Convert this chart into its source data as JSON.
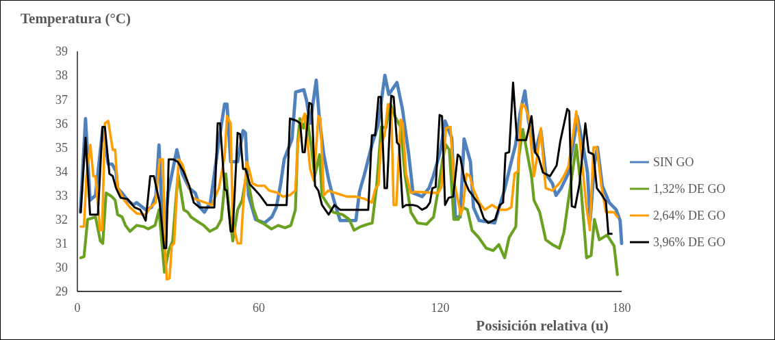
{
  "chart_data": {
    "type": "line",
    "ylabel": "Temperatura (°C)",
    "xlabel": "Posisición relativa (u)",
    "xlim": [
      0,
      180
    ],
    "xticks": [
      0,
      60,
      120,
      180
    ],
    "ylim": [
      29,
      39
    ],
    "yticks": [
      29,
      30,
      31,
      32,
      33,
      34,
      35,
      36,
      37,
      38,
      39
    ],
    "grid": false,
    "legend": "right",
    "marker": "none",
    "line_style": "solid",
    "series": [
      {
        "name": "SIN GO",
        "color": "#4f81bd",
        "x": [
          1,
          2.7,
          4.2,
          6,
          8.4,
          10.2,
          11.5,
          12.8,
          13.3,
          15,
          16.6,
          18.5,
          19.6,
          20.6,
          22.6,
          24.5,
          26,
          27,
          28.5,
          30,
          32.9,
          34.7,
          37,
          39,
          40.6,
          42,
          44,
          46.9,
          48.7,
          49.5,
          50.7,
          53,
          54.8,
          55.6,
          56.6,
          58.9,
          61.9,
          64.3,
          65.8,
          67.2,
          68.4,
          71,
          72.2,
          74.9,
          75.8,
          77,
          79,
          80.1,
          81.5,
          83.1,
          84.6,
          86.9,
          92.1,
          93.3,
          95.1,
          97.4,
          99.4,
          101.7,
          103,
          105.7,
          107.5,
          109.6,
          111,
          114,
          116.3,
          117.7,
          120,
          121.6,
          123.8,
          125,
          126.6,
          127.9,
          130,
          131,
          132.9,
          138,
          141.3,
          143.5,
          144.9,
          146.4,
          148,
          149.2,
          151.4,
          153.3,
          154.9,
          157.1,
          158.3,
          160,
          162.3,
          164.6,
          165.3,
          167.2,
          168.7,
          169.6,
          171,
          172,
          173.6,
          175.9,
          178.2,
          179.5,
          180
        ],
        "values": [
          32.3,
          36.2,
          32.8,
          33,
          35.8,
          34.3,
          34.3,
          34,
          33.3,
          33.07,
          32.8,
          32.6,
          32.7,
          32.6,
          32.4,
          32.5,
          33,
          35.1,
          30.8,
          33.1,
          34.9,
          33.9,
          33.3,
          33.1,
          32.5,
          32.3,
          32.7,
          35.35,
          36.8,
          36.8,
          34.4,
          34.4,
          35.7,
          35.6,
          33,
          32,
          31.85,
          32.1,
          32.5,
          33.45,
          34.5,
          35.35,
          37.3,
          37.4,
          36.95,
          36,
          37.8,
          36.1,
          34.7,
          33.65,
          32.9,
          31.95,
          31.95,
          33.15,
          33.95,
          35.1,
          35.9,
          38,
          37.2,
          37.7,
          36.6,
          34.7,
          33.1,
          32.95,
          33.3,
          33.8,
          34.8,
          36.1,
          35.4,
          32.1,
          32.1,
          35.35,
          34.4,
          32.5,
          31.95,
          31.85,
          33.25,
          34.4,
          35.1,
          36.4,
          37.35,
          36.1,
          34.8,
          35.7,
          33.9,
          33.5,
          33,
          33.3,
          33.9,
          35.6,
          36.3,
          35.1,
          33.95,
          31.95,
          34.3,
          35,
          33.4,
          32.7,
          32.4,
          31.95,
          31
        ]
      },
      {
        "name": "1,32% DE GO",
        "color": "#6aa121",
        "x": [
          1.1,
          2.2,
          3.4,
          6,
          7.6,
          8.4,
          9.5,
          11.4,
          12.5,
          13.3,
          14.8,
          15.9,
          17.4,
          19.6,
          21.9,
          23.4,
          25.7,
          27,
          28.8,
          30.2,
          31.5,
          33.3,
          35.2,
          36.5,
          37.6,
          39.9,
          41.8,
          43.8,
          46.1,
          47.6,
          49.1,
          50.3,
          51.4,
          53,
          54.5,
          56,
          58.1,
          59.6,
          61.9,
          64.2,
          66.4,
          68.7,
          70.6,
          72.1,
          72.9,
          73.6,
          74.8,
          75.9,
          77.4,
          78.5,
          80.1,
          80.9,
          82.4,
          84.6,
          87.7,
          89.9,
          91.5,
          93.7,
          96,
          97.5,
          98.9,
          100.5,
          102,
          103.5,
          105,
          106.9,
          108.4,
          110.3,
          112.5,
          115.5,
          117.8,
          119.3,
          120.8,
          121.9,
          123,
          124.5,
          126,
          127.5,
          129,
          130.5,
          132.7,
          135.2,
          137.5,
          139.4,
          141.3,
          142.8,
          145,
          146,
          147.3,
          148.7,
          150.2,
          151,
          152.9,
          154.9,
          157.1,
          159.4,
          160.9,
          162.4,
          165,
          166.5,
          168.4,
          169.9,
          171,
          172.6,
          175.2,
          177.5,
          178.6
        ],
        "values": [
          30.4,
          30.45,
          32,
          32.1,
          31.1,
          31,
          33.1,
          32.95,
          32.8,
          32.2,
          32.1,
          31.75,
          31.5,
          31.75,
          31.7,
          31.6,
          31.75,
          32.4,
          29.8,
          30.7,
          31.1,
          33.9,
          32.4,
          32.3,
          32.1,
          31.9,
          31.75,
          31.5,
          31.65,
          32,
          33.9,
          32.2,
          31.1,
          32.4,
          32.8,
          33.9,
          32.5,
          31.95,
          31.8,
          31.6,
          31.75,
          31.65,
          31.75,
          32.4,
          35.25,
          36.2,
          35.8,
          36.3,
          35,
          33.8,
          34.7,
          33,
          32.7,
          32.3,
          32.2,
          32,
          31.55,
          31.7,
          31.8,
          31.85,
          33.3,
          35.85,
          35.8,
          36.8,
          36.3,
          35.85,
          33.8,
          32.3,
          31.85,
          31.8,
          32.1,
          33.2,
          34.5,
          35.1,
          34.9,
          32,
          32,
          32.5,
          32.4,
          31.55,
          31.25,
          30.8,
          30.7,
          30.95,
          30.4,
          31.25,
          31.7,
          34.6,
          35.75,
          34.8,
          33.8,
          32.8,
          32.3,
          31.15,
          30.95,
          30.8,
          31.45,
          32.8,
          35.1,
          33.4,
          30.4,
          30.5,
          32,
          31.15,
          31.35,
          30.9,
          29.7
        ]
      },
      {
        "name": "2,64% DE GO",
        "color": "#ff9e00",
        "x": [
          1.1,
          2.2,
          3,
          4.3,
          5.3,
          6,
          7.5,
          8.2,
          9.1,
          10.2,
          11.7,
          12.5,
          13.3,
          15.5,
          17.4,
          19.6,
          22.6,
          24.1,
          25.9,
          27.2,
          28.3,
          29,
          29.6,
          30.5,
          31.2,
          32,
          33.5,
          34.7,
          36.2,
          38.1,
          40,
          42.3,
          44.5,
          46.8,
          48.7,
          49.5,
          50.7,
          51.4,
          53,
          54.1,
          54.8,
          56,
          56.8,
          57.9,
          59.6,
          61.9,
          63.4,
          66.4,
          67.9,
          70.2,
          72.1,
          72.9,
          74,
          75.2,
          77,
          78.2,
          79.7,
          80.4,
          81.5,
          83,
          85.3,
          89.1,
          92.1,
          95.1,
          97.4,
          98.5,
          99.6,
          100.4,
          101.6,
          102.7,
          103.8,
          104.6,
          105.5,
          106.9,
          107.6,
          108.7,
          110.3,
          111.8,
          119.3,
          120.4,
          121.9,
          123.4,
          124.5,
          125.7,
          126.8,
          127.5,
          128.7,
          129.8,
          131,
          132.9,
          134.7,
          137.1,
          139.7,
          142,
          143.5,
          144.6,
          145.7,
          146.9,
          148,
          149.2,
          151,
          152.1,
          153.3,
          154.4,
          154.9,
          157.1,
          159.4,
          160.9,
          162.4,
          163.9,
          165,
          166.1,
          168.4,
          169.5,
          170.7,
          171.8,
          173.3,
          174.8,
          177.5,
          178.6
        ],
        "values": [
          31.7,
          31.7,
          33.8,
          35.1,
          33.8,
          33.8,
          31.55,
          31.55,
          36,
          36.1,
          34.9,
          34.9,
          33.35,
          32.8,
          32.5,
          32.25,
          32.2,
          32.5,
          32.7,
          34.5,
          34.5,
          30.8,
          29.5,
          29.55,
          30.9,
          31,
          34.5,
          34.3,
          33.65,
          32.9,
          32.8,
          32.7,
          32.6,
          33.3,
          34.6,
          36.3,
          36,
          31.85,
          31,
          31,
          32.5,
          34.4,
          34.1,
          33.5,
          33.4,
          33.4,
          33.2,
          33.1,
          32.95,
          33,
          33.2,
          35.1,
          36,
          36.4,
          34.1,
          33.6,
          36.3,
          36.2,
          33,
          33.2,
          33.1,
          32.95,
          32.95,
          32.85,
          32.7,
          33.25,
          33.45,
          35.1,
          35.5,
          36.8,
          36.6,
          32.6,
          32.6,
          36.15,
          36,
          33.9,
          33.1,
          33.15,
          33.1,
          33.35,
          35.8,
          35.85,
          33.65,
          32.9,
          32.2,
          32.5,
          33.9,
          33.8,
          33.25,
          32.7,
          32.4,
          32.6,
          32.4,
          32.4,
          32.5,
          33.9,
          34,
          36.8,
          36.7,
          36.3,
          33.8,
          34.65,
          35.8,
          34,
          33.3,
          33.2,
          33.5,
          33.8,
          34.2,
          35.5,
          36.5,
          35.35,
          32.5,
          31.55,
          35,
          35,
          33.4,
          32.3,
          32.3,
          32.1
        ]
      },
      {
        "name": "3,96% DE GO",
        "color": "#000000",
        "x": [
          1.1,
          2.7,
          4.2,
          6.8,
          8.3,
          9.1,
          10.6,
          11.7,
          12.8,
          14.3,
          16.6,
          18.9,
          20.8,
          22.6,
          24.1,
          25.3,
          27.2,
          28.7,
          29.4,
          30.2,
          31.7,
          33.2,
          35.1,
          37,
          38.5,
          40.4,
          45.3,
          46.4,
          47.2,
          48.7,
          49.4,
          50.7,
          51.4,
          53,
          53.8,
          54.8,
          55.6,
          57.1,
          58.6,
          60.4,
          62.7,
          69.2,
          70.3,
          72.6,
          73.7,
          74.5,
          75.2,
          76.7,
          77.5,
          78.6,
          79.7,
          80.9,
          83.1,
          85,
          86.9,
          96.2,
          97.4,
          98.5,
          99.6,
          100.4,
          101.6,
          102.4,
          103.8,
          104.6,
          105.7,
          106.4,
          107.6,
          108.7,
          111,
          112.5,
          114,
          115.5,
          116.6,
          117.4,
          118.5,
          119.8,
          120.6,
          121.6,
          122.8,
          124.3,
          125.8,
          126.6,
          128.1,
          129.5,
          131,
          132.9,
          134.4,
          135.9,
          138.2,
          139.7,
          140.8,
          141.6,
          142.8,
          144.1,
          145.4,
          148.4,
          150.2,
          151.4,
          152.5,
          154,
          156.3,
          158.5,
          159.7,
          162,
          162.7,
          163.5,
          164.6,
          166.1,
          168,
          169.1,
          170.7,
          171.8,
          173.3,
          174.8,
          175.6,
          176.7
        ],
        "values": [
          32.3,
          35.4,
          32.2,
          32.2,
          35.85,
          35.85,
          33.9,
          33.8,
          33.3,
          32.9,
          32.85,
          32.5,
          32.4,
          31.95,
          33.8,
          33.8,
          32.7,
          30.8,
          30.8,
          34.5,
          34.5,
          34.4,
          34,
          33.4,
          32.7,
          32.5,
          32.5,
          36,
          36,
          33.25,
          33.2,
          31.5,
          31.5,
          35.6,
          35.55,
          34.1,
          34.1,
          33.45,
          33.25,
          33,
          32.6,
          32.6,
          36.2,
          36.1,
          36,
          34.8,
          34.8,
          36.85,
          36.8,
          33.4,
          33.2,
          32.6,
          32.2,
          32.6,
          32.4,
          32.4,
          35.5,
          35.5,
          37.1,
          37.1,
          33.3,
          33.3,
          37.15,
          37.1,
          35.2,
          35.1,
          32.5,
          32.6,
          32.6,
          32.55,
          32.4,
          32.5,
          32.7,
          33.3,
          33.35,
          36.35,
          36.3,
          32.6,
          32.9,
          32.95,
          34.7,
          34.6,
          33.6,
          33.2,
          32.95,
          32.6,
          32.05,
          31.85,
          32,
          32.6,
          32.7,
          34.75,
          34.8,
          37.7,
          35.3,
          35.3,
          36.3,
          34.8,
          34.6,
          33.95,
          33.8,
          34.25,
          35.25,
          36.6,
          36.5,
          32.55,
          32.5,
          33.5,
          36,
          34.8,
          34.7,
          33.3,
          33.05,
          32.75,
          31.4,
          31.4
        ]
      }
    ]
  }
}
